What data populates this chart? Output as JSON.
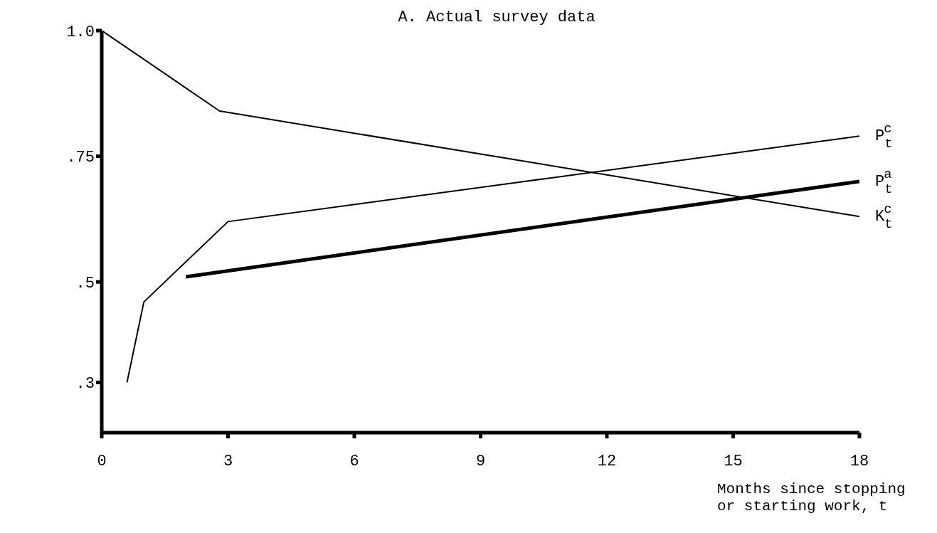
{
  "chart_data": {
    "type": "line",
    "title": "A.  Actual survey data",
    "xlabel": "Months since stopping or starting work, t",
    "xlim": [
      0,
      18
    ],
    "xticks": [
      0,
      3,
      6,
      9,
      12,
      15,
      18
    ],
    "ylim": [
      0.2,
      1.0
    ],
    "yticks": [
      {
        "value": 0.3,
        "label": ".3"
      },
      {
        "value": 0.5,
        "label": ".5"
      },
      {
        "value": 0.75,
        "label": ".75"
      },
      {
        "value": 1.0,
        "label": "1.0"
      }
    ],
    "grid": false,
    "marker": "none",
    "line_style": "solid",
    "series": [
      {
        "name": "P$_{t}$$^{c}$",
        "color": "#000000",
        "x": [
          0.6,
          1,
          3,
          18
        ],
        "values": [
          0.3,
          0.46,
          0.62,
          0.79
        ]
      },
      {
        "name": "P$_{t}$$^{a}$",
        "color": "#000000",
        "x": [
          2,
          18
        ],
        "values": [
          0.51,
          0.7
        ]
      },
      {
        "name": "K$_{t}$$^{c}$",
        "color": "#000000",
        "x": [
          0,
          2.8,
          18
        ],
        "values": [
          1.0,
          0.84,
          0.63
        ]
      }
    ]
  }
}
